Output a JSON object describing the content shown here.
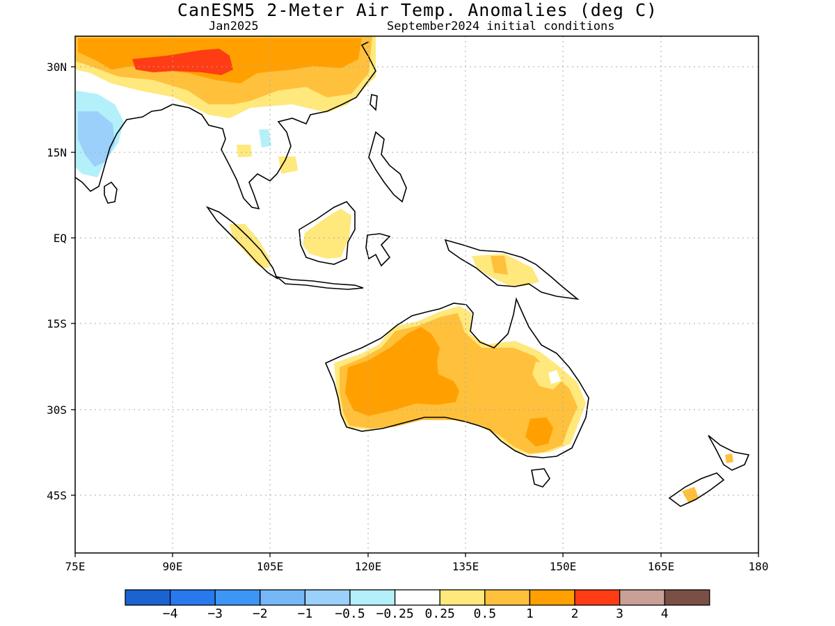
{
  "title": "CanESM5 2-Meter Air Temp. Anomalies (deg C)",
  "subtitle_left": "Jan2025",
  "subtitle_right": "September2024 initial conditions",
  "axes": {
    "x_ticks": [
      "75E",
      "90E",
      "105E",
      "120E",
      "135E",
      "150E",
      "165E",
      "180"
    ],
    "y_ticks": [
      "30N",
      "15N",
      "EQ",
      "15S",
      "30S",
      "45S"
    ]
  },
  "colorbar": {
    "colors": [
      "#1a64d2",
      "#2878ee",
      "#3c96f5",
      "#76b7f8",
      "#9bd0fa",
      "#b4f0fa",
      "#ffffff",
      "#ffe87c",
      "#ffc03c",
      "#ffa000",
      "#ff3c14",
      "#c8a096",
      "#7a5044"
    ],
    "labels": [
      "−4",
      "−3",
      "−2",
      "−1",
      "−0.5",
      "−0.25",
      "0.25",
      "0.5",
      "1",
      "2",
      "3",
      "4"
    ]
  }
}
